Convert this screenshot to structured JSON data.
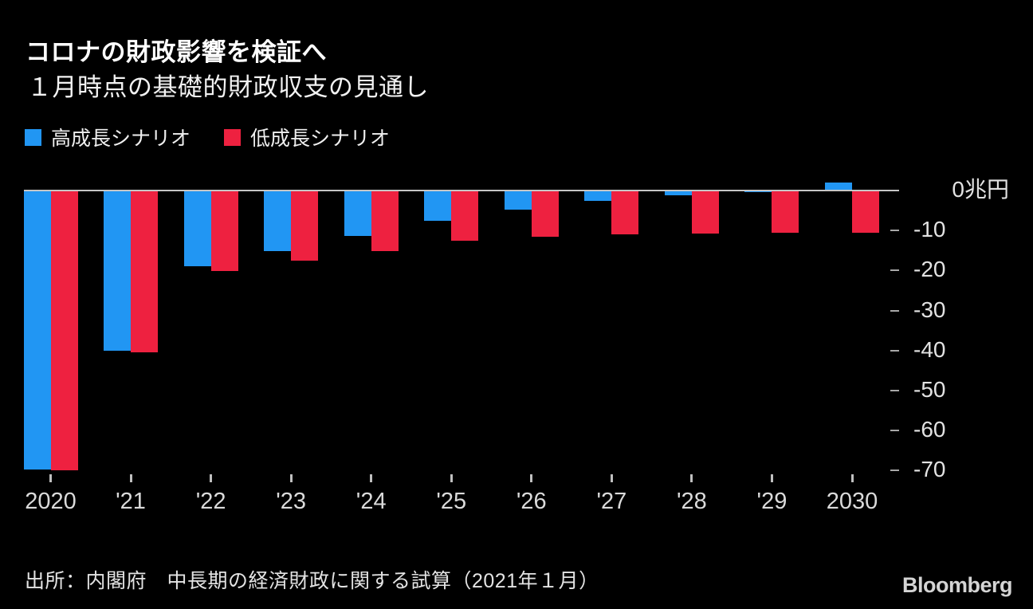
{
  "header": {
    "title": "コロナの財政影響を検証へ",
    "subtitle": "１月時点の基礎的財政収支の見通し"
  },
  "legend": {
    "items": [
      {
        "label": "高成長シナリオ",
        "color": "#2196f3"
      },
      {
        "label": "低成長シナリオ",
        "color": "#ee2140"
      }
    ]
  },
  "footer": {
    "source": "出所：内閣府　中長期の経済財政に関する試算（2021年１月）",
    "logo": "Bloomberg"
  },
  "chart_data": {
    "type": "bar",
    "title": "コロナの財政影響を検証へ",
    "subtitle": "１月時点の基礎的財政収支の見通し",
    "unit": "兆円",
    "categories": [
      "2020",
      "'21",
      "'22",
      "'23",
      "'24",
      "'25",
      "'26",
      "'27",
      "'28",
      "'29",
      "2030"
    ],
    "series": [
      {
        "name": "高成長シナリオ",
        "color": "#2196f3",
        "values": [
          -69.7,
          -40.0,
          -19.0,
          -15.1,
          -11.3,
          -7.5,
          -4.7,
          -2.6,
          -1.1,
          -0.4,
          2.0
        ]
      },
      {
        "name": "低成長シナリオ",
        "color": "#ee2140",
        "values": [
          -69.9,
          -40.4,
          -20.1,
          -17.6,
          -15.2,
          -12.5,
          -11.5,
          -10.9,
          -10.7,
          -10.5,
          -10.5
        ]
      }
    ],
    "yticks": [
      0,
      -10,
      -20,
      -30,
      -40,
      -50,
      -60,
      -70
    ],
    "ytick_labels": [
      "0兆円",
      "-10",
      "-20",
      "-30",
      "-40",
      "-50",
      "-60",
      "-70"
    ],
    "ylim": [
      -72,
      4
    ],
    "grid": false,
    "legend_position": "top-left",
    "background": "#000000",
    "axis_color": "#c6c6c6"
  }
}
